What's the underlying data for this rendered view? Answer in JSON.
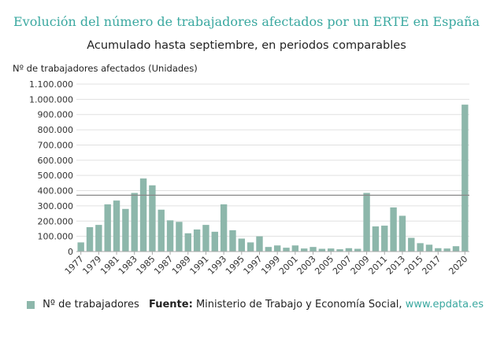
{
  "colors": {
    "bar": "#8db7ab",
    "title": "#3aa8a0",
    "refline": "#888888",
    "grid": "#e0e0e0",
    "axis": "#aaaaaa"
  },
  "footer": {
    "legend_label": "Nº de trabajadores",
    "source_label": "Fuente:",
    "source_text": "Ministerio de Trabajo y Economía Social,",
    "source_site": "www.epdata.es"
  },
  "chart_data": {
    "type": "bar",
    "title": "Evolución del número de trabajadores afectados por un ERTE en España",
    "subtitle": "Acumulado hasta septiembre, en periodos comparables",
    "ylabel": "Nº de trabajadores afectados (Unidades)",
    "ylim": [
      0,
      1100000
    ],
    "yticks": [
      0,
      100000,
      200000,
      300000,
      400000,
      500000,
      600000,
      700000,
      800000,
      900000,
      1000000,
      1100000
    ],
    "ytick_labels": [
      "0",
      "100.000",
      "200.000",
      "300.000",
      "400.000",
      "500.000",
      "600.000",
      "700.000",
      "800.000",
      "900.000",
      "1.000.000",
      "1.100.000"
    ],
    "categories": [
      "1977",
      "1978",
      "1979",
      "1980",
      "1981",
      "1982",
      "1983",
      "1984",
      "1985",
      "1986",
      "1987",
      "1988",
      "1989",
      "1990",
      "1991",
      "1992",
      "1993",
      "1994",
      "1995",
      "1996",
      "1997",
      "1998",
      "1999",
      "2000",
      "2001",
      "2002",
      "2003",
      "2004",
      "2005",
      "2006",
      "2007",
      "2008",
      "2009",
      "2010",
      "2011",
      "2012",
      "2013",
      "2014",
      "2015",
      "2016",
      "2017",
      "2018",
      "2019",
      "2020"
    ],
    "xtick_labels": [
      "1977",
      "1979",
      "1981",
      "1983",
      "1985",
      "1987",
      "1989",
      "1991",
      "1993",
      "1995",
      "1997",
      "1999",
      "2001",
      "2003",
      "2005",
      "2007",
      "2009",
      "2011",
      "2013",
      "2015",
      "2017",
      "2020"
    ],
    "series": [
      {
        "name": "Nº de trabajadores",
        "values": [
          60000,
          160000,
          175000,
          310000,
          335000,
          280000,
          385000,
          480000,
          435000,
          275000,
          205000,
          195000,
          120000,
          145000,
          175000,
          130000,
          310000,
          140000,
          85000,
          60000,
          100000,
          30000,
          40000,
          25000,
          40000,
          20000,
          30000,
          18000,
          20000,
          15000,
          22000,
          18000,
          385000,
          165000,
          170000,
          290000,
          235000,
          90000,
          55000,
          45000,
          22000,
          20000,
          35000,
          965000
        ]
      }
    ],
    "reference_line": 370000,
    "grid": true,
    "legend": "bottom-left"
  }
}
